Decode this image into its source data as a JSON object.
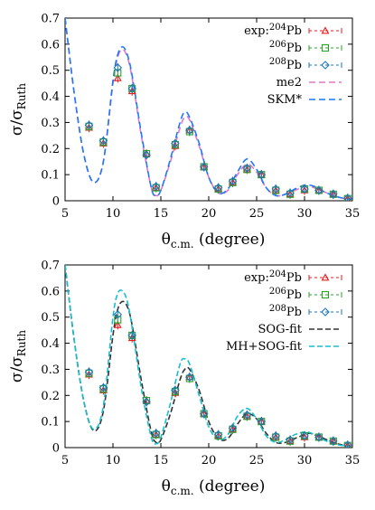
{
  "chart_data": [
    {
      "type": "line",
      "panel": "top",
      "xlabel_main": "θ",
      "xlabel_sub": "c.m.",
      "xlabel_rest": " (degree)",
      "ylabel_main": "σ/σ",
      "ylabel_sub": "Ruth",
      "xlim": [
        5,
        35
      ],
      "ylim": [
        0,
        0.7
      ],
      "xticks": [
        5,
        10,
        15,
        20,
        25,
        30,
        35
      ],
      "yticks": [
        0,
        0.1,
        0.2,
        0.3,
        0.4,
        0.5,
        0.6,
        0.7
      ],
      "legend_position": "top-right",
      "exp_label": "exp:",
      "exp_series": [
        {
          "name": "204",
          "suffix": "Pb",
          "color": "#e41a1c",
          "marker": "triangle",
          "x": [
            7.5,
            9.0,
            10.5,
            12.0,
            13.5,
            14.5,
            16.5,
            18.0,
            19.5,
            21.0,
            22.5,
            24.0,
            25.5,
            27.0,
            28.5,
            30.0,
            31.5,
            33.0,
            34.5
          ],
          "y": [
            0.28,
            0.22,
            0.47,
            0.42,
            0.18,
            0.05,
            0.21,
            0.27,
            0.13,
            0.045,
            0.07,
            0.12,
            0.1,
            0.04,
            0.025,
            0.04,
            0.04,
            0.025,
            0.008
          ]
        },
        {
          "name": "206",
          "suffix": "Pb",
          "color": "#2ca02c",
          "marker": "square",
          "x": [
            7.5,
            9.0,
            10.5,
            12.0,
            13.5,
            14.5,
            16.5,
            18.0,
            19.5,
            21.0,
            22.5,
            24.0,
            25.5,
            27.0,
            28.5,
            30.0,
            31.5,
            33.0,
            34.5
          ],
          "y": [
            0.285,
            0.225,
            0.49,
            0.43,
            0.18,
            0.05,
            0.215,
            0.265,
            0.13,
            0.045,
            0.07,
            0.12,
            0.1,
            0.04,
            0.025,
            0.045,
            0.04,
            0.025,
            0.008
          ]
        },
        {
          "name": "208",
          "suffix": "Pb",
          "color": "#1f77b4",
          "marker": "diamond",
          "x": [
            7.5,
            9.0,
            10.5,
            12.0,
            13.5,
            14.5,
            16.5,
            18.0,
            19.5,
            21.0,
            22.5,
            24.0,
            25.5,
            27.0,
            28.5,
            30.0,
            31.5,
            33.0,
            34.5
          ],
          "y": [
            0.29,
            0.23,
            0.51,
            0.43,
            0.175,
            0.055,
            0.22,
            0.27,
            0.13,
            0.05,
            0.075,
            0.125,
            0.1,
            0.045,
            0.03,
            0.045,
            0.04,
            0.025,
            0.01
          ]
        }
      ],
      "theory_series": [
        {
          "name": "me2",
          "color": "#e377c2",
          "dash": "7,4",
          "x": [
            5,
            6,
            7,
            8,
            9,
            10,
            10.5,
            11,
            11.5,
            12,
            13,
            14,
            14.5,
            15,
            16,
            17,
            17.5,
            18,
            19,
            20,
            21,
            22,
            23,
            24,
            25,
            26,
            27,
            28,
            29,
            30,
            30.5,
            31,
            32,
            33,
            34,
            35
          ],
          "y": [
            0.7,
            0.4,
            0.17,
            0.07,
            0.15,
            0.45,
            0.55,
            0.58,
            0.55,
            0.47,
            0.24,
            0.05,
            0.02,
            0.04,
            0.15,
            0.28,
            0.32,
            0.31,
            0.21,
            0.09,
            0.03,
            0.04,
            0.1,
            0.14,
            0.11,
            0.05,
            0.02,
            0.025,
            0.04,
            0.055,
            0.055,
            0.05,
            0.035,
            0.02,
            0.01,
            0.006
          ]
        },
        {
          "name": "SKM*",
          "color": "#1f77ff",
          "dash": "7,4",
          "x": [
            5,
            6,
            7,
            8,
            9,
            10,
            10.5,
            11,
            11.5,
            12,
            13,
            14,
            14.5,
            15,
            16,
            17,
            17.5,
            18,
            19,
            20,
            21,
            22,
            23,
            24,
            25,
            26,
            27,
            28,
            29,
            30,
            30.5,
            31,
            32,
            33,
            34,
            35
          ],
          "y": [
            0.7,
            0.4,
            0.17,
            0.07,
            0.15,
            0.46,
            0.56,
            0.59,
            0.56,
            0.48,
            0.25,
            0.05,
            0.02,
            0.04,
            0.16,
            0.3,
            0.34,
            0.32,
            0.22,
            0.09,
            0.03,
            0.045,
            0.11,
            0.16,
            0.12,
            0.05,
            0.02,
            0.025,
            0.045,
            0.06,
            0.06,
            0.055,
            0.035,
            0.02,
            0.01,
            0.006
          ]
        }
      ]
    },
    {
      "type": "line",
      "panel": "bottom",
      "xlabel_main": "θ",
      "xlabel_sub": "c.m.",
      "xlabel_rest": " (degree)",
      "ylabel_main": "σ/σ",
      "ylabel_sub": "Ruth",
      "xlim": [
        5,
        35
      ],
      "ylim": [
        0,
        0.7
      ],
      "xticks": [
        5,
        10,
        15,
        20,
        25,
        30,
        35
      ],
      "yticks": [
        0,
        0.1,
        0.2,
        0.3,
        0.4,
        0.5,
        0.6,
        0.7
      ],
      "legend_position": "top-right",
      "exp_label": "exp:",
      "exp_series": [
        {
          "name": "204",
          "suffix": "Pb",
          "color": "#e41a1c",
          "marker": "triangle",
          "x": [
            7.5,
            9.0,
            10.5,
            12.0,
            13.5,
            14.5,
            16.5,
            18.0,
            19.5,
            21.0,
            22.5,
            24.0,
            25.5,
            27.0,
            28.5,
            30.0,
            31.5,
            33.0,
            34.5
          ],
          "y": [
            0.28,
            0.22,
            0.47,
            0.42,
            0.18,
            0.05,
            0.21,
            0.27,
            0.13,
            0.045,
            0.07,
            0.12,
            0.1,
            0.04,
            0.025,
            0.04,
            0.04,
            0.025,
            0.008
          ]
        },
        {
          "name": "206",
          "suffix": "Pb",
          "color": "#2ca02c",
          "marker": "square",
          "x": [
            7.5,
            9.0,
            10.5,
            12.0,
            13.5,
            14.5,
            16.5,
            18.0,
            19.5,
            21.0,
            22.5,
            24.0,
            25.5,
            27.0,
            28.5,
            30.0,
            31.5,
            33.0,
            34.5
          ],
          "y": [
            0.285,
            0.225,
            0.49,
            0.43,
            0.18,
            0.05,
            0.215,
            0.265,
            0.13,
            0.045,
            0.07,
            0.12,
            0.1,
            0.04,
            0.025,
            0.045,
            0.04,
            0.025,
            0.008
          ]
        },
        {
          "name": "208",
          "suffix": "Pb",
          "color": "#1f77b4",
          "marker": "diamond",
          "x": [
            7.5,
            9.0,
            10.5,
            12.0,
            13.5,
            14.5,
            16.5,
            18.0,
            19.5,
            21.0,
            22.5,
            24.0,
            25.5,
            27.0,
            28.5,
            30.0,
            31.5,
            33.0,
            34.5
          ],
          "y": [
            0.29,
            0.23,
            0.51,
            0.43,
            0.175,
            0.055,
            0.22,
            0.27,
            0.13,
            0.05,
            0.075,
            0.125,
            0.1,
            0.045,
            0.03,
            0.045,
            0.04,
            0.025,
            0.01
          ]
        }
      ],
      "theory_series": [
        {
          "name": "SOG-fit",
          "color": "#333333",
          "dash": "6,3",
          "x": [
            5,
            6,
            7,
            8,
            9,
            10,
            10.5,
            11,
            11.5,
            12,
            13,
            14,
            14.5,
            15,
            16,
            17,
            17.5,
            18,
            19,
            20,
            21,
            22,
            23,
            24,
            25,
            26,
            27,
            28,
            29,
            30,
            30.5,
            31,
            32,
            33,
            34,
            35
          ],
          "y": [
            0.7,
            0.4,
            0.17,
            0.065,
            0.14,
            0.43,
            0.53,
            0.56,
            0.54,
            0.47,
            0.25,
            0.06,
            0.02,
            0.03,
            0.13,
            0.26,
            0.3,
            0.3,
            0.22,
            0.1,
            0.035,
            0.035,
            0.09,
            0.13,
            0.11,
            0.055,
            0.02,
            0.02,
            0.035,
            0.05,
            0.055,
            0.05,
            0.035,
            0.02,
            0.01,
            0.005
          ]
        },
        {
          "name": "MH+SOG-fit",
          "color": "#17becf",
          "dash": "6,3",
          "x": [
            5,
            6,
            7,
            8,
            9,
            10,
            10.5,
            11,
            11.5,
            12,
            13,
            14,
            14.5,
            15,
            16,
            17,
            17.5,
            18,
            19,
            20,
            21,
            22,
            23,
            24,
            25,
            26,
            27,
            28,
            29,
            30,
            30.5,
            31,
            32,
            33,
            34,
            35
          ],
          "y": [
            0.7,
            0.4,
            0.17,
            0.07,
            0.16,
            0.5,
            0.59,
            0.6,
            0.56,
            0.46,
            0.22,
            0.04,
            0.015,
            0.04,
            0.17,
            0.32,
            0.34,
            0.32,
            0.2,
            0.08,
            0.03,
            0.05,
            0.12,
            0.15,
            0.11,
            0.045,
            0.02,
            0.03,
            0.05,
            0.06,
            0.058,
            0.05,
            0.03,
            0.015,
            0.008,
            0.005
          ]
        }
      ]
    }
  ]
}
